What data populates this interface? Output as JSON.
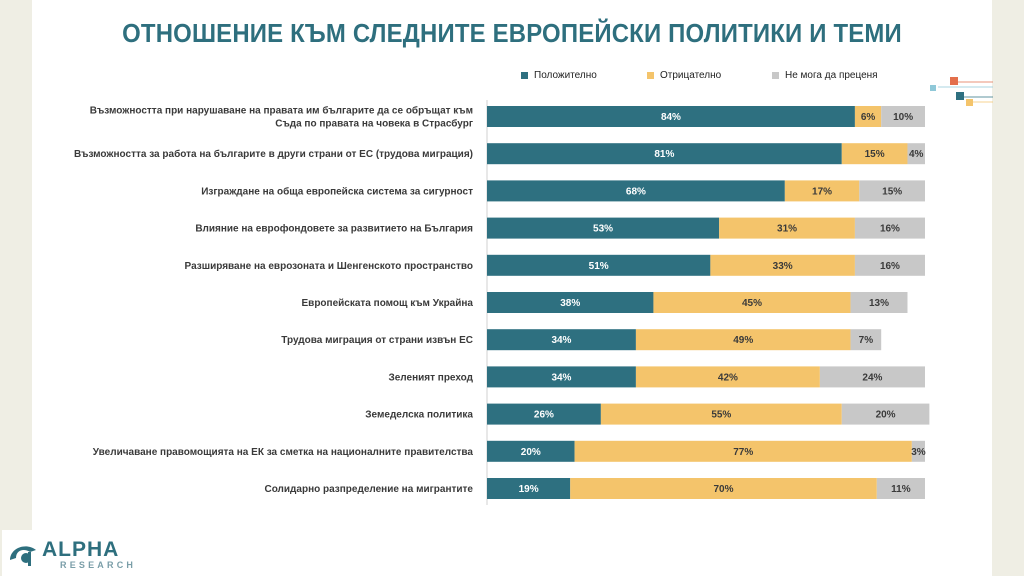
{
  "title": "ОТНОШЕНИЕ КЪМ СЛЕДНИТЕ ЕВРОПЕЙСКИ ПОЛИТИКИ И ТЕМИ",
  "colors": {
    "positive": "#2e7080",
    "negative": "#f4c46b",
    "undecided": "#c8c8c8",
    "title": "#2e6f7e",
    "deco_orange": "#e36f4c",
    "deco_teal": "#2e7080",
    "deco_light_blue": "#8fc8d8",
    "deco_yellow": "#f4c46b"
  },
  "logo": {
    "brand": "ALPHA",
    "sub": "RESEARCH"
  },
  "chart_data": {
    "type": "bar",
    "orientation": "horizontal",
    "stacked": true,
    "percent_stacked": true,
    "legend_position": "top",
    "grid": false,
    "categories": [
      "Възможността при нарушаване на правата им българите да се обръщат към\nСъда по правата на човека в Страсбург",
      "Възможността за работа на българите в други страни от ЕС (трудова миграция)",
      "Изграждане на обща европейска система за сигурност",
      "Влияние на еврофондовете за развитието на България",
      "Разширяване на еврозоната и Шенгенското пространство",
      "Европейската помощ към Украйна",
      "Трудова миграция от страни извън ЕС",
      "Зеленият преход",
      "Земеделска политика",
      "Увеличаване правомощията на ЕК за сметка на националните правителства",
      "Солидарно разпределение на мигрантите"
    ],
    "series": [
      {
        "name": "Положително",
        "values": [
          84,
          81,
          68,
          53,
          51,
          38,
          34,
          34,
          26,
          20,
          19
        ]
      },
      {
        "name": "Отрицателно",
        "values": [
          6,
          15,
          17,
          31,
          33,
          45,
          49,
          42,
          55,
          77,
          70
        ]
      },
      {
        "name": "Не мога да преценя",
        "values": [
          10,
          4,
          15,
          16,
          16,
          13,
          7,
          24,
          20,
          3,
          11
        ]
      }
    ],
    "value_suffix": "%"
  }
}
